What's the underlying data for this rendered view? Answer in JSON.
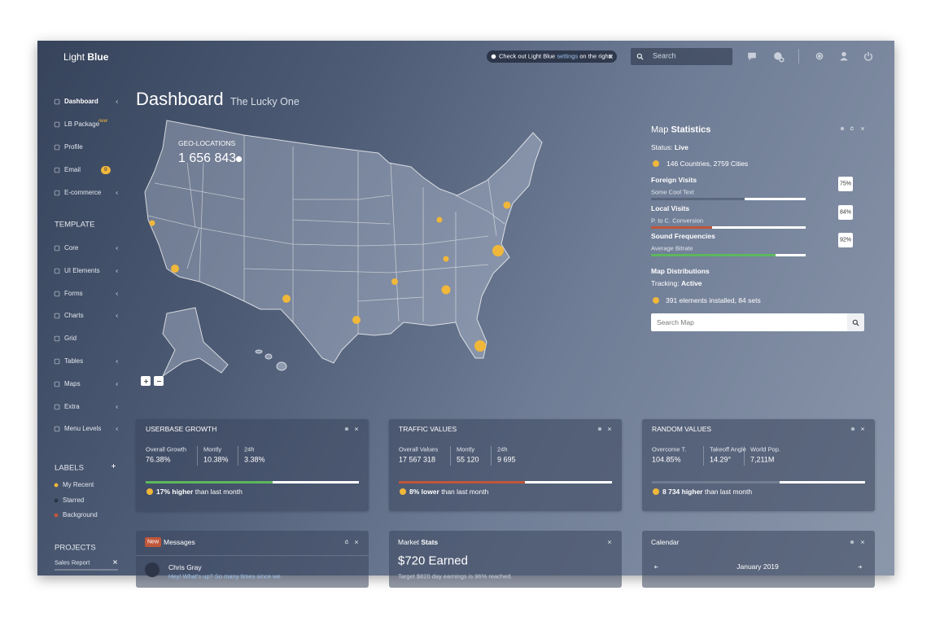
{
  "header": {
    "brand_light": "Light",
    "brand_bold": "Blue",
    "notice": {
      "before": "Check out Light Blue",
      "link": "settings",
      "after": "on the right!"
    },
    "search_placeholder": "Search"
  },
  "sidebar": {
    "nav": [
      {
        "label": "Dashboard"
      },
      {
        "label": "LB Package",
        "badge": "new"
      },
      {
        "label": "Profile"
      },
      {
        "label": "Email",
        "badge": 9
      },
      {
        "label": "E-commerce"
      }
    ],
    "template_heading": "TEMPLATE",
    "template": [
      "Core",
      "UI Elements",
      "Forms",
      "Charts",
      "Grid",
      "Tables",
      "Maps",
      "Extra",
      "Menu Levels"
    ],
    "labels_heading": "LABELS",
    "labels": [
      "My Recent",
      "Starred",
      "Background"
    ],
    "projects_heading": "PROJECTS",
    "projects": [
      "Sales Report"
    ]
  },
  "page": {
    "title": "Dashboard",
    "subtitle": "The Lucky One"
  },
  "map": {
    "label": "GEO-LOCATIONS",
    "count": "1 656 843"
  },
  "map_stats": {
    "title_light": "Map",
    "title_bold": "Statistics",
    "status_label": "Status:",
    "status": "Live",
    "coverage": "146 Countries, 2759 Cities",
    "metrics": [
      {
        "name": "Foreign Visits",
        "desc": "Some Cool Text",
        "percent": "75%"
      },
      {
        "name": "Local Visits",
        "desc": "P. to C. Conversion",
        "percent": "84%"
      },
      {
        "name": "Sound Frequencies",
        "desc": "Average Bitrate",
        "percent": "92%"
      }
    ],
    "distributions": "Map Distributions",
    "tracking_label": "Tracking:",
    "tracking": "Active",
    "installed": "391 elements installed, 84 sets",
    "search_placeholder": "Search Map"
  },
  "cards": [
    {
      "title": "USERBASE GROWTH",
      "stats": [
        {
          "label": "Overall Growth",
          "value": "76.38%"
        },
        {
          "label": "Montly",
          "value": "10.38%"
        },
        {
          "label": "24h",
          "value": "3.38%"
        }
      ],
      "footer_bold": "17% higher",
      "footer": "than last month"
    },
    {
      "title": "TRAFFIC VALUES",
      "stats": [
        {
          "label": "Overall Values",
          "value": "17 567 318"
        },
        {
          "label": "Montly",
          "value": "55 120"
        },
        {
          "label": "24h",
          "value": "9 695"
        }
      ],
      "footer_bold": "8% lower",
      "footer": "than last month"
    },
    {
      "title": "RANDOM VALUES",
      "stats": [
        {
          "label": "Overcome T.",
          "value": "104.85%"
        },
        {
          "label": "Takeoff Angle",
          "value": "14.29°"
        },
        {
          "label": "World Pop.",
          "value": "7,211M"
        }
      ],
      "footer_bold": "8 734 higher",
      "footer": "than last month"
    }
  ],
  "messages": {
    "badge": "New",
    "title": "Messages",
    "items": [
      {
        "name": "Chris Gray",
        "text": "Hey! What's up? So many times since we"
      }
    ]
  },
  "market": {
    "title_light": "Market",
    "title_bold": "Stats",
    "headline": "$720 Earned",
    "text": "Target $820 day earnings is 96% reached."
  },
  "calendar": {
    "title": "Calendar",
    "month": "January 2019"
  }
}
